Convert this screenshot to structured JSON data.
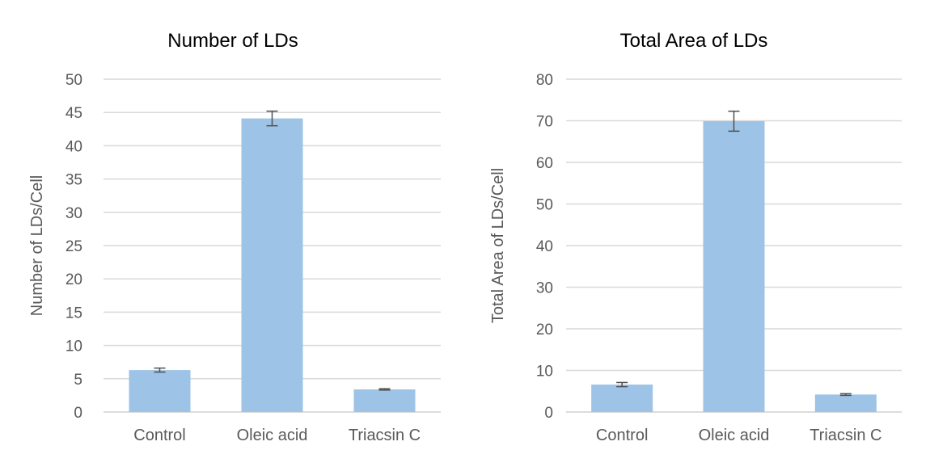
{
  "chart_data": [
    {
      "type": "bar",
      "title": "Number of LDs",
      "xlabel": "",
      "ylabel": "Number of LDs/Cell",
      "categories": [
        "Control",
        "Oleic acid",
        "Triacsin C"
      ],
      "values": [
        6.3,
        44.1,
        3.4
      ],
      "errors": [
        0.3,
        1.1,
        0.1
      ],
      "ylim": [
        0,
        50
      ],
      "yticks": [
        0,
        5,
        10,
        15,
        20,
        25,
        30,
        35,
        40,
        45,
        50
      ],
      "grid": true,
      "bar_color": "#9DC3E6"
    },
    {
      "type": "bar",
      "title": "Total Area of LDs",
      "xlabel": "",
      "ylabel": "Total Area of LDs/Cell",
      "categories": [
        "Control",
        "Oleic acid",
        "Triacsin C"
      ],
      "values": [
        6.6,
        69.9,
        4.2
      ],
      "errors": [
        0.5,
        2.4,
        0.2
      ],
      "ylim": [
        0,
        80
      ],
      "yticks": [
        0,
        10,
        20,
        30,
        40,
        50,
        60,
        70,
        80
      ],
      "grid": true,
      "bar_color": "#9DC3E6"
    }
  ]
}
